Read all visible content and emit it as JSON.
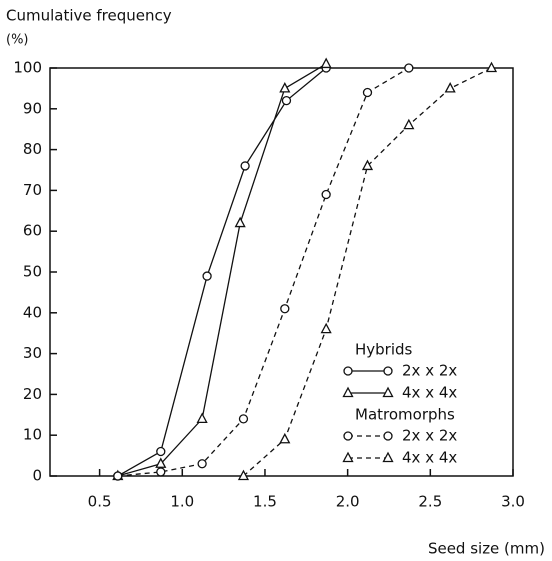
{
  "chart_data": {
    "type": "line",
    "ylabel": "Cumulative frequency",
    "ylabel_unit": "(%)",
    "xlabel": "Seed size (mm)",
    "xlim": [
      0.2,
      3.0
    ],
    "ylim": [
      0,
      100
    ],
    "xticks": [
      0.5,
      {
        "value": 1.0,
        "label": "1.0"
      },
      1.5,
      {
        "value": 2.0,
        "label": "2.0"
      },
      2.5,
      {
        "value": 3.0,
        "label": "3.0"
      }
    ],
    "yticks": [
      0,
      10,
      20,
      30,
      40,
      50,
      60,
      70,
      80,
      90,
      100
    ],
    "legend_groups": [
      "Hybrids",
      "Matromorphs"
    ],
    "series": [
      {
        "name": "2x x 2x",
        "group": 0,
        "marker": "circle",
        "dashed": false,
        "color": "#111111",
        "x": [
          0.61,
          0.87,
          1.15,
          1.38,
          1.63,
          1.87
        ],
        "values": [
          0,
          6,
          49,
          76,
          92,
          100
        ]
      },
      {
        "name": "4x x 4x",
        "group": 0,
        "marker": "triangle",
        "dashed": false,
        "color": "#111111",
        "x": [
          0.61,
          0.87,
          1.12,
          1.35,
          1.62,
          1.87
        ],
        "values": [
          0,
          3,
          14,
          62,
          95,
          101
        ]
      },
      {
        "name": "2x x 2x",
        "group": 1,
        "marker": "circle",
        "dashed": true,
        "color": "#111111",
        "x": [
          0.61,
          0.87,
          1.12,
          1.37,
          1.62,
          1.87,
          2.12,
          2.37
        ],
        "values": [
          0,
          1,
          3,
          14,
          41,
          69,
          94,
          100
        ]
      },
      {
        "name": "4x x 4x",
        "group": 1,
        "marker": "triangle",
        "dashed": true,
        "color": "#111111",
        "x": [
          1.37,
          1.62,
          1.87,
          2.12,
          2.37,
          2.62,
          2.87
        ],
        "values": [
          0,
          9,
          36,
          76,
          86,
          95,
          100
        ]
      }
    ]
  }
}
